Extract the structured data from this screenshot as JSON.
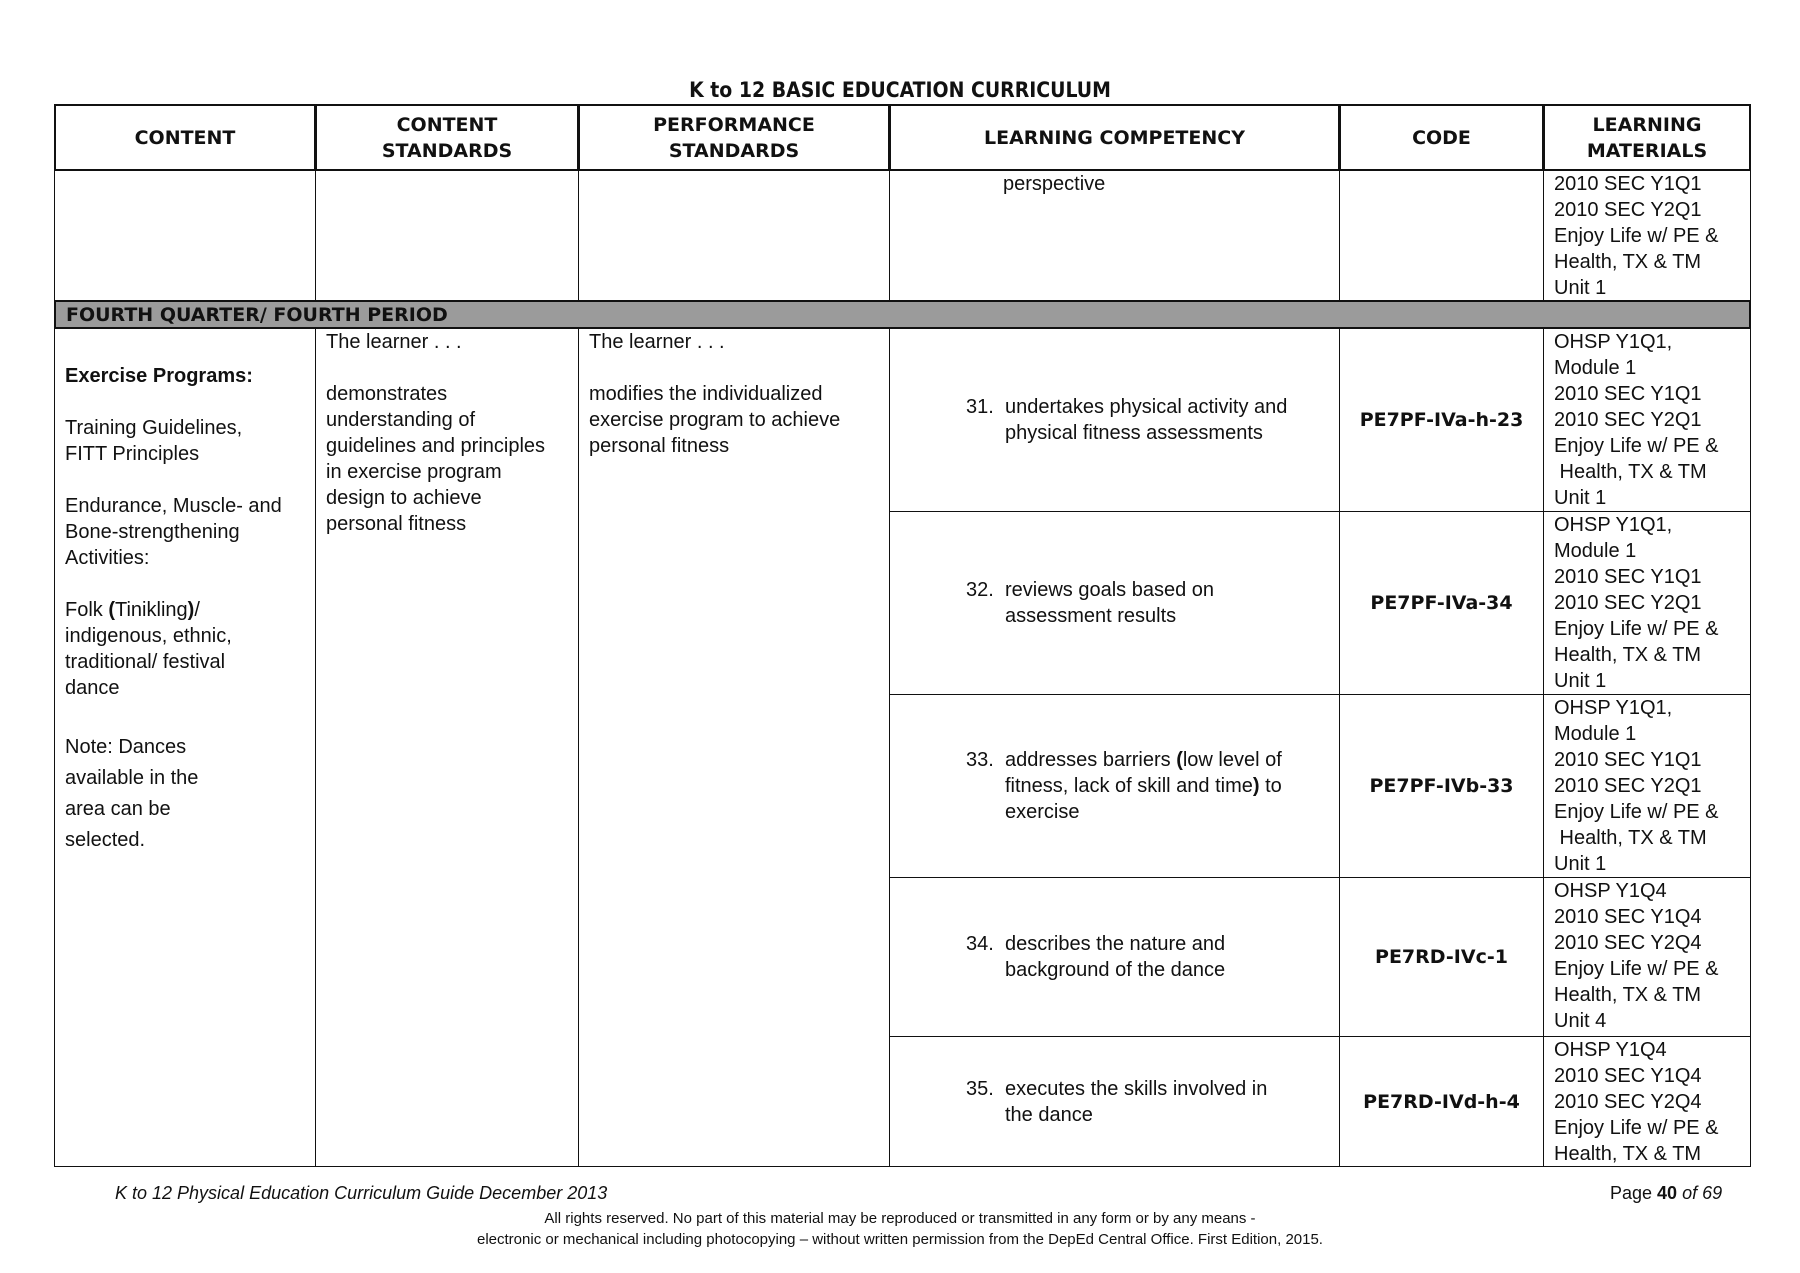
{
  "doc_title": "K to 12 BASIC EDUCATION CURRICULUM",
  "headers": [
    "CONTENT",
    "CONTENT STANDARDS",
    "PERFORMANCE STANDARDS",
    "LEARNING COMPETENCY",
    "CODE",
    "LEARNING MATERIALS"
  ],
  "carryover_row": {
    "competency": "perspective",
    "materials": [
      "2010 SEC  Y1Q1",
      "2010 SEC  Y2Q1",
      "Enjoy Life w/ PE &",
      "Health, TX & TM",
      "Unit 1"
    ]
  },
  "section_label": "FOURTH QUARTER/ FOURTH PERIOD",
  "content": {
    "heading": "Exercise Programs:",
    "line1": "Training Guidelines,",
    "line2": "FITT Principles",
    "line3": "Endurance, Muscle- and",
    "line4": "Bone-strengthening",
    "line5": "Activities:",
    "folk_a": "Folk ",
    "folk_paren_open": "(",
    "folk_b": "Tinikling",
    "folk_paren_close": ")",
    "folk_c": "/",
    "line7": "indigenous, ethnic,",
    "line8": "traditional/ festival",
    "line9": "dance",
    "note1": "Note: Dances",
    "note2": "available in the",
    "note3": "area can be",
    "note4": "selected."
  },
  "content_standards": {
    "intro": "The learner . . .",
    "text": [
      "demonstrates",
      "understanding of",
      "guidelines and principles",
      "in exercise program",
      "design to achieve",
      "personal fitness"
    ]
  },
  "performance_standards": {
    "intro": "The learner . . .",
    "text": [
      "modifies the individualized",
      "exercise program to achieve",
      "personal fitness"
    ]
  },
  "competencies": [
    {
      "num": "31.",
      "lines": [
        "undertakes physical activity and",
        "physical fitness assessments"
      ],
      "code": "PE7PF-IVa-h-23",
      "materials": [
        "OHSP Y1Q1,",
        "Module 1",
        "2010 SEC  Y1Q1",
        "2010 SEC  Y2Q1",
        "Enjoy Life w/ PE &",
        " Health, TX & TM",
        "Unit 1"
      ]
    },
    {
      "num": "32.",
      "lines": [
        "reviews goals based on",
        "assessment results"
      ],
      "code": "PE7PF-IVa-34",
      "materials": [
        "OHSP Y1Q1,",
        "Module 1",
        "2010 SEC  Y1Q1",
        "2010 SEC  Y2Q1",
        "Enjoy Life w/ PE &",
        "Health, TX & TM",
        "Unit 1"
      ]
    },
    {
      "num": "33.",
      "line1_a": "addresses barriers ",
      "paren_open": "(",
      "line1_b": "low level of",
      "line2_a": "fitness, lack of skill and time",
      "paren_close": ")",
      "line2_b": " to",
      "line3": "exercise",
      "code": "PE7PF-IVb-33",
      "materials": [
        "OHSP Y1Q1,",
        "Module 1",
        "2010 SEC  Y1Q1",
        "2010 SEC  Y2Q1",
        "Enjoy Life w/ PE &",
        " Health, TX & TM",
        "Unit 1"
      ]
    },
    {
      "num": "34.",
      "lines": [
        "describes the nature and",
        "background of the dance"
      ],
      "code": "PE7RD-IVc-1",
      "materials": [
        "OHSP Y1Q4",
        "2010 SEC  Y1Q4",
        "2010 SEC  Y2Q4",
        "Enjoy Life w/ PE &",
        "Health, TX & TM",
        "Unit 4"
      ]
    },
    {
      "num": "35.",
      "lines": [
        "executes the skills involved in",
        "the dance"
      ],
      "code": "PE7RD-IVd-h-4",
      "materials": [
        "OHSP Y1Q4",
        "2010 SEC  Y1Q4",
        "2010 SEC  Y2Q4",
        "Enjoy Life w/ PE &",
        "Health, TX & TM"
      ]
    }
  ],
  "footer": {
    "guide": "K to 12 Physical Education Curriculum Guide December 2013",
    "page_word": "Page ",
    "page_num": "40",
    "page_of": " of 69",
    "copyright1": "All rights reserved. No part of this material may be reproduced or transmitted in any form or by any means -",
    "copyright2": "electronic or mechanical including photocopying – without written permission from the DepEd Central Office. First Edition, 2015."
  }
}
